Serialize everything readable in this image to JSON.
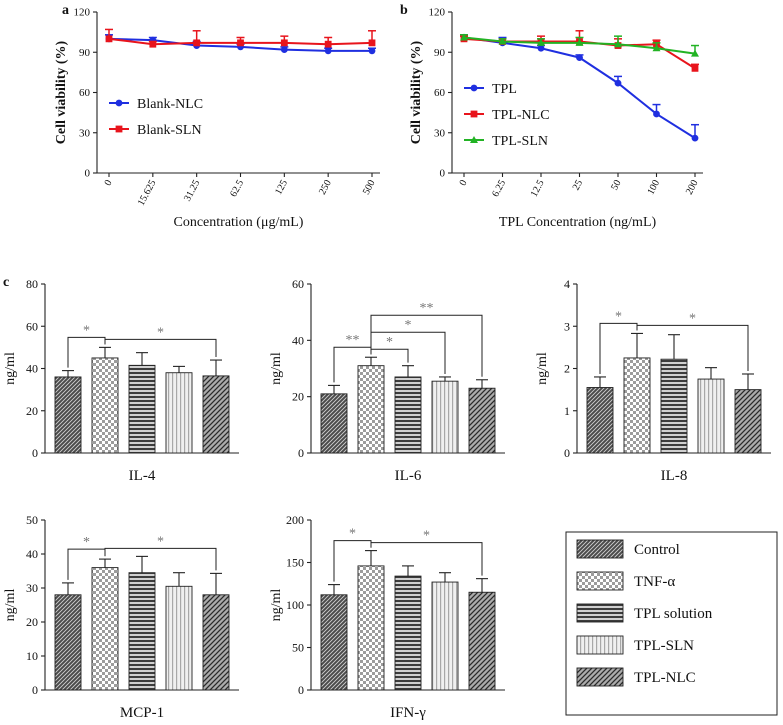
{
  "chart_data": [
    {
      "panel": "a",
      "type": "line",
      "xlabel": "Concentration (μg/mL)",
      "ylabel": "Cell viability (%)",
      "categories": [
        "0",
        "15.625",
        "31.25",
        "62.5",
        "125",
        "250",
        "500"
      ],
      "ylim": [
        0,
        120
      ],
      "yticks": [
        0,
        30,
        60,
        90,
        120
      ],
      "legend": "left-middle",
      "series": [
        {
          "name": "Blank-NLC",
          "color": "#1f2fe0",
          "marker": "circle",
          "values": [
            100,
            99,
            95,
            94,
            92,
            91,
            91
          ],
          "errors": [
            3,
            2,
            3,
            2,
            2,
            2,
            2
          ]
        },
        {
          "name": "Blank-SLN",
          "color": "#e8141c",
          "marker": "square",
          "values": [
            100,
            96,
            97,
            97,
            97,
            96,
            97
          ],
          "errors": [
            7,
            2,
            9,
            4,
            5,
            5,
            9
          ]
        }
      ]
    },
    {
      "panel": "b",
      "type": "line",
      "xlabel": "TPL Concentration (ng/mL)",
      "ylabel": "Cell viability (%)",
      "categories": [
        "0",
        "6.25",
        "12.5",
        "25",
        "50",
        "100",
        "200"
      ],
      "ylim": [
        0,
        120
      ],
      "yticks": [
        0,
        30,
        60,
        90,
        120
      ],
      "legend": "left-middle",
      "series": [
        {
          "name": "TPL",
          "color": "#1f2fe0",
          "marker": "circle",
          "values": [
            101,
            97,
            93,
            86,
            67,
            44,
            26
          ],
          "errors": [
            2,
            4,
            2,
            2,
            5,
            7,
            10
          ]
        },
        {
          "name": "TPL-NLC",
          "color": "#e8141c",
          "marker": "square",
          "values": [
            100,
            98,
            98,
            98,
            95,
            96,
            78
          ],
          "errors": [
            2,
            2,
            4,
            8,
            5,
            3,
            3
          ]
        },
        {
          "name": "TPL-SLN",
          "color": "#22b324",
          "marker": "triangle",
          "values": [
            101,
            98,
            97,
            97,
            96,
            93,
            89
          ],
          "errors": [
            2,
            2,
            3,
            4,
            6,
            4,
            6
          ]
        }
      ]
    },
    {
      "panel": "c",
      "type": "bar",
      "title": "IL-4",
      "ylabel": "ng/ml",
      "ylim": [
        0,
        80
      ],
      "yticks": [
        0,
        20,
        40,
        60,
        80
      ],
      "groups": [
        "Control",
        "TNF-α",
        "TPL solution",
        "TPL-SLN",
        "TPL-NLC"
      ],
      "values": [
        36,
        45,
        41.5,
        38,
        36.5
      ],
      "errors": [
        3,
        5,
        6,
        3,
        7.5
      ],
      "significance": [
        {
          "from": 0,
          "to": 1,
          "label": "*"
        },
        {
          "from": 1,
          "to": 4,
          "label": "*"
        }
      ]
    },
    {
      "panel": "c",
      "type": "bar",
      "title": "IL-6",
      "ylabel": "ng/ml",
      "ylim": [
        0,
        60
      ],
      "yticks": [
        0,
        20,
        40,
        60
      ],
      "groups": [
        "Control",
        "TNF-α",
        "TPL solution",
        "TPL-SLN",
        "TPL-NLC"
      ],
      "values": [
        21,
        31,
        27,
        25.5,
        23
      ],
      "errors": [
        3,
        3,
        4,
        1.5,
        3
      ],
      "significance": [
        {
          "from": 0,
          "to": 1,
          "label": "**"
        },
        {
          "from": 1,
          "to": 2,
          "label": "*"
        },
        {
          "from": 1,
          "to": 3,
          "label": "*"
        },
        {
          "from": 1,
          "to": 4,
          "label": "**"
        }
      ]
    },
    {
      "panel": "c",
      "type": "bar",
      "title": "IL-8",
      "ylabel": "ng/ml",
      "ylim": [
        0,
        4
      ],
      "yticks": [
        0,
        1,
        2,
        3,
        4
      ],
      "groups": [
        "Control",
        "TNF-α",
        "TPL solution",
        "TPL-SLN",
        "TPL-NLC"
      ],
      "values": [
        1.55,
        2.25,
        2.22,
        1.75,
        1.5
      ],
      "errors": [
        0.25,
        0.58,
        0.58,
        0.27,
        0.37
      ],
      "significance": [
        {
          "from": 0,
          "to": 1,
          "label": "*"
        },
        {
          "from": 1,
          "to": 4,
          "label": "*"
        }
      ]
    },
    {
      "panel": "c",
      "type": "bar",
      "title": "MCP-1",
      "ylabel": "ng/ml",
      "ylim": [
        0,
        50
      ],
      "yticks": [
        0,
        10,
        20,
        30,
        40,
        50
      ],
      "groups": [
        "Control",
        "TNF-α",
        "TPL solution",
        "TPL-SLN",
        "TPL-NLC"
      ],
      "values": [
        28,
        36,
        34.5,
        30.5,
        28
      ],
      "errors": [
        3.5,
        2.5,
        4.8,
        4,
        6.3
      ],
      "significance": [
        {
          "from": 0,
          "to": 1,
          "label": "*"
        },
        {
          "from": 1,
          "to": 4,
          "label": "*"
        }
      ]
    },
    {
      "panel": "c",
      "type": "bar",
      "title": "IFN-γ",
      "ylabel": "ng/ml",
      "ylim": [
        0,
        200
      ],
      "yticks": [
        0,
        50,
        100,
        150,
        200
      ],
      "groups": [
        "Control",
        "TNF-α",
        "TPL solution",
        "TPL-SLN",
        "TPL-NLC"
      ],
      "values": [
        112,
        146,
        134,
        127,
        115
      ],
      "errors": [
        12,
        18,
        12,
        11,
        16
      ],
      "significance": [
        {
          "from": 0,
          "to": 1,
          "label": "*"
        },
        {
          "from": 1,
          "to": 4,
          "label": "*"
        }
      ]
    }
  ],
  "legend": {
    "items": [
      "Control",
      "TNF-α",
      "TPL solution",
      "TPL-SLN",
      "TPL-NLC"
    ]
  }
}
